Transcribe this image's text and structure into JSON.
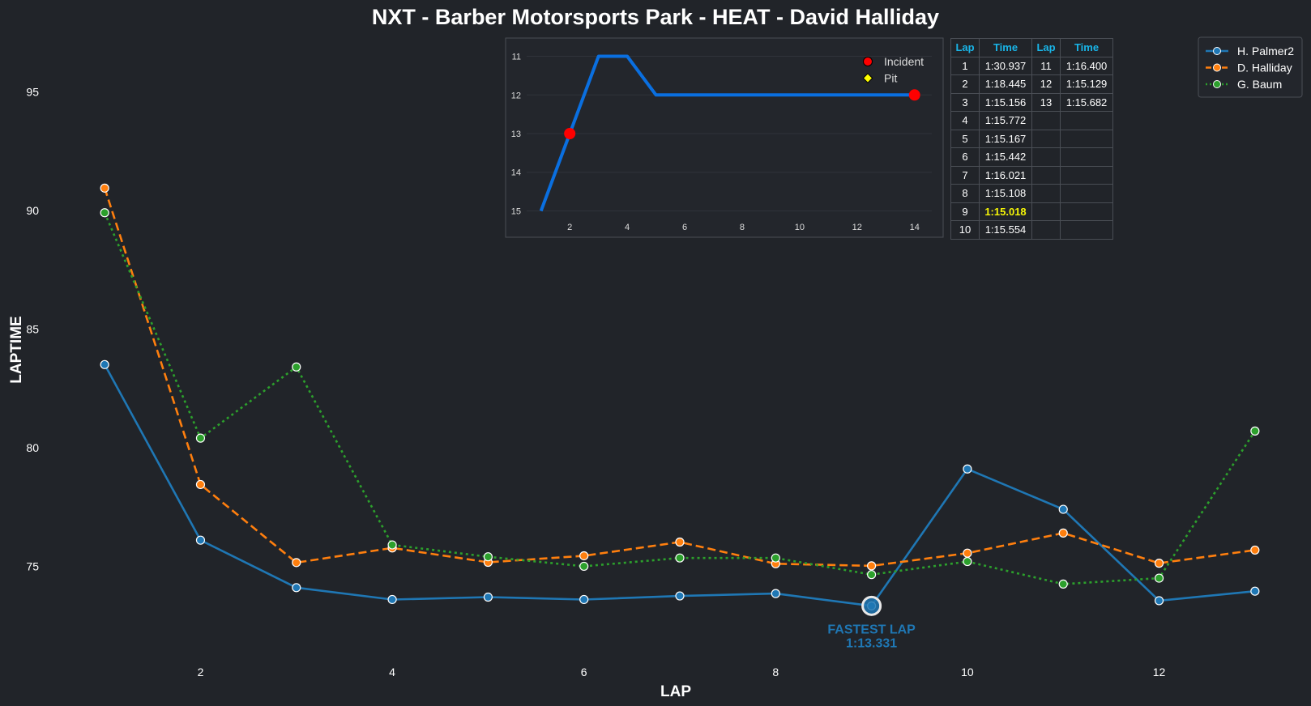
{
  "chart_data": [
    {
      "type": "line",
      "title": "NXT - Barber Motorsports Park - HEAT - David Halliday",
      "xlabel": "LAP",
      "ylabel": "LAPTIME",
      "xlim": [
        0.5,
        13.5
      ],
      "ylim": [
        71.5,
        97.5
      ],
      "xticks": [
        2,
        4,
        6,
        8,
        10,
        12
      ],
      "yticks": [
        75,
        80,
        85,
        90,
        95
      ],
      "grid": false,
      "legend": "top-right",
      "x": [
        1,
        2,
        3,
        4,
        5,
        6,
        7,
        8,
        9,
        10,
        11,
        12,
        13
      ],
      "series": [
        {
          "name": "H. Palmer2",
          "color": "#1f77b4",
          "style": "solid",
          "values": [
            83.5,
            76.1,
            74.1,
            73.6,
            73.7,
            73.6,
            73.75,
            73.85,
            73.331,
            79.1,
            77.4,
            73.55,
            73.95
          ]
        },
        {
          "name": "D. Halliday",
          "color": "#ff7f0e",
          "style": "dashed",
          "values": [
            90.937,
            78.445,
            75.156,
            75.772,
            75.167,
            75.442,
            76.021,
            75.108,
            75.018,
            75.554,
            76.4,
            75.129,
            75.682
          ]
        },
        {
          "name": "G. Baum",
          "color": "#2ca02c",
          "style": "dotted",
          "values": [
            89.9,
            80.4,
            83.4,
            75.9,
            75.4,
            75.0,
            75.35,
            75.35,
            74.65,
            75.2,
            74.25,
            74.5,
            80.7
          ]
        }
      ],
      "annotation": {
        "series": "H. Palmer2",
        "lap": 9,
        "line1": "FASTEST LAP",
        "line2": "1:13.331",
        "color": "#1f77b4"
      }
    },
    {
      "type": "line",
      "title": "",
      "xlim": [
        0.5,
        14.6
      ],
      "ylim": [
        15.2,
        10.8
      ],
      "y_inverted": true,
      "xticks": [
        2,
        4,
        6,
        8,
        10,
        12,
        14
      ],
      "yticks": [
        11,
        12,
        13,
        14,
        15
      ],
      "grid": true,
      "legend": "top-right",
      "x": [
        1,
        2,
        3,
        4,
        5,
        6,
        7,
        8,
        9,
        10,
        11,
        12,
        13,
        14
      ],
      "series": [
        {
          "name": "",
          "color": "#0a6fe0",
          "values": [
            15,
            13,
            11,
            11,
            12,
            12,
            12,
            12,
            12,
            12,
            12,
            12,
            12,
            12
          ]
        }
      ],
      "incidents": [
        2,
        14
      ],
      "pits": [],
      "legend_items": [
        {
          "label": "Incident",
          "color": "#ff0000",
          "marker": "circle"
        },
        {
          "label": "Pit",
          "color": "#ffff00",
          "marker": "diamond"
        }
      ]
    }
  ],
  "lap_table": {
    "headers": [
      "Lap",
      "Time",
      "Lap",
      "Time"
    ],
    "rows": [
      [
        "1",
        "1:30.937",
        "11",
        "1:16.400"
      ],
      [
        "2",
        "1:18.445",
        "12",
        "1:15.129"
      ],
      [
        "3",
        "1:15.156",
        "13",
        "1:15.682"
      ],
      [
        "4",
        "1:15.772",
        "",
        ""
      ],
      [
        "5",
        "1:15.167",
        "",
        ""
      ],
      [
        "6",
        "1:15.442",
        "",
        ""
      ],
      [
        "7",
        "1:16.021",
        "",
        ""
      ],
      [
        "8",
        "1:15.108",
        "",
        ""
      ],
      [
        "9",
        "1:15.018",
        "",
        ""
      ],
      [
        "10",
        "1:15.554",
        "",
        ""
      ]
    ],
    "fastest_lap": "9",
    "fastest_color": "#f5f507"
  }
}
